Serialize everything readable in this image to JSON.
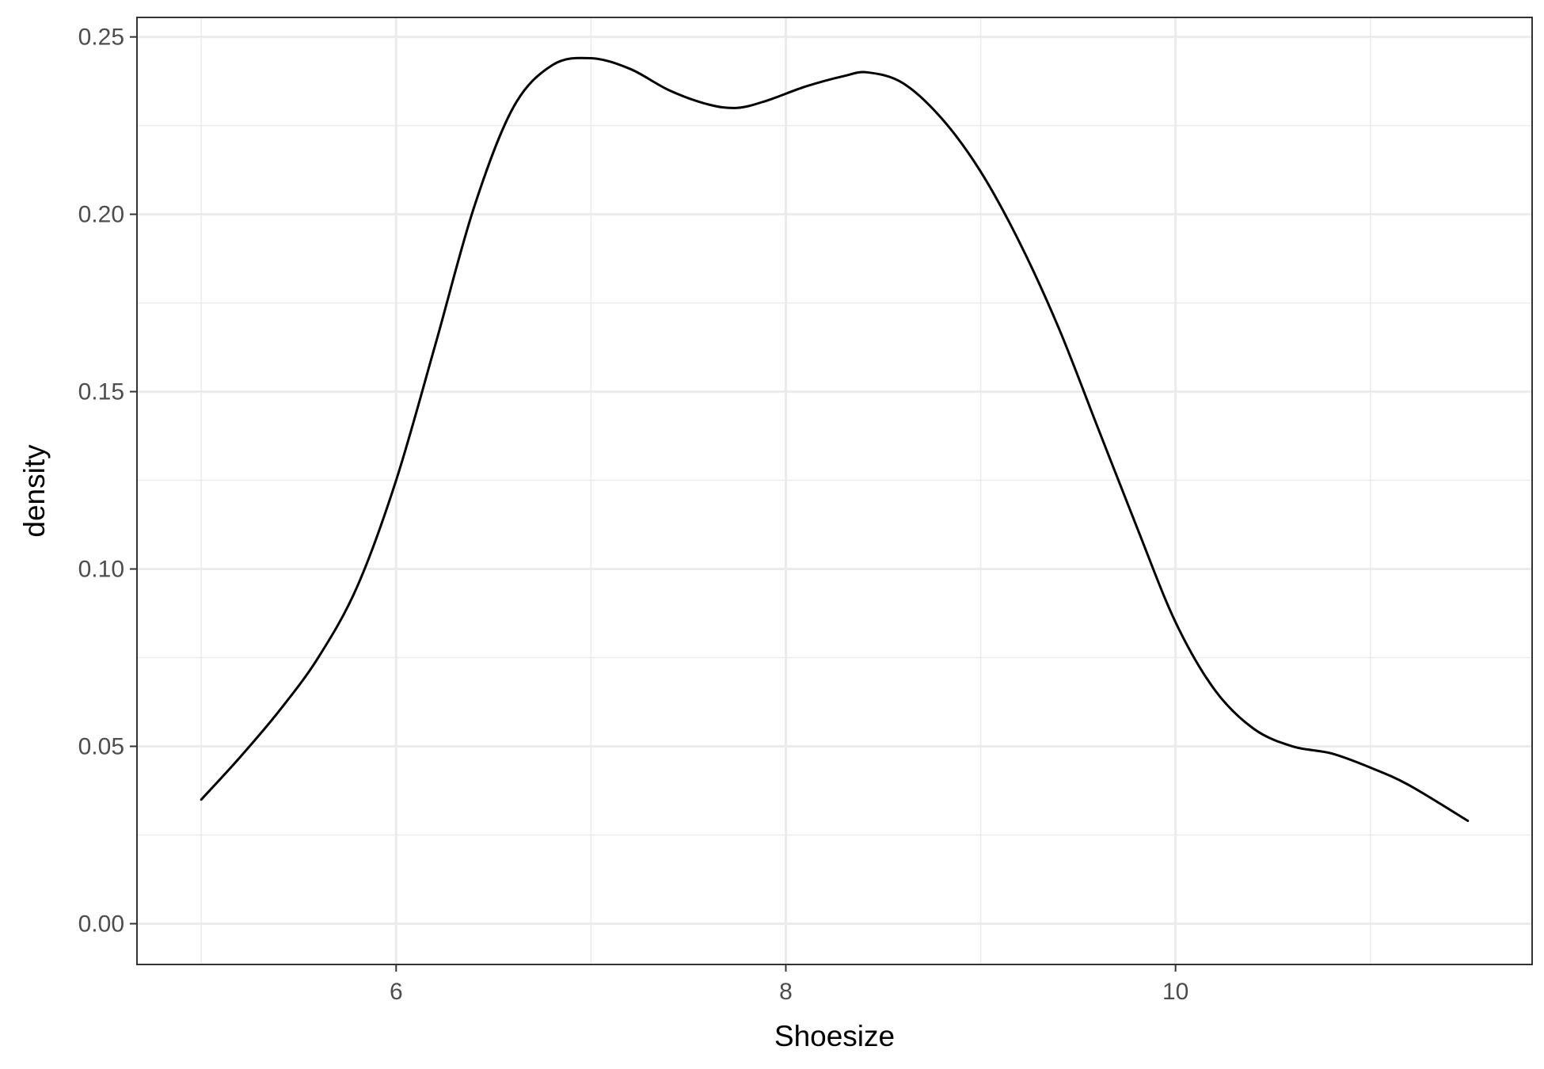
{
  "chart_data": {
    "type": "line",
    "title": "",
    "xlabel": "Shoesize",
    "ylabel": "density",
    "xlim": [
      4.67,
      11.83
    ],
    "ylim": [
      -0.0115,
      0.2555
    ],
    "x_ticks": [
      6,
      8,
      10
    ],
    "x_tick_labels": [
      "6",
      "8",
      "10"
    ],
    "x_minor_ticks": [
      5,
      7,
      9,
      11
    ],
    "y_ticks": [
      0.0,
      0.05,
      0.1,
      0.15,
      0.2,
      0.25
    ],
    "y_tick_labels": [
      "0.00",
      "0.05",
      "0.10",
      "0.15",
      "0.20",
      "0.25"
    ],
    "y_minor_ticks": [
      0.025,
      0.075,
      0.125,
      0.175,
      0.225
    ],
    "grid": true,
    "colors": {
      "line": "#000000",
      "grid": "#ebebeb",
      "panel_border": "#333333",
      "background": "#ffffff"
    },
    "series": [
      {
        "values_x": [
          5.0,
          5.2,
          5.4,
          5.6,
          5.8,
          6.0,
          6.2,
          6.4,
          6.6,
          6.8,
          7.0,
          7.2,
          7.4,
          7.6,
          7.75,
          7.9,
          8.1,
          8.3,
          8.42,
          8.6,
          8.8,
          9.0,
          9.2,
          9.4,
          9.6,
          9.8,
          10.0,
          10.2,
          10.4,
          10.6,
          10.8,
          11.0,
          11.2,
          11.5
        ],
        "values_y": [
          0.035,
          0.047,
          0.06,
          0.075,
          0.095,
          0.125,
          0.163,
          0.202,
          0.23,
          0.242,
          0.244,
          0.241,
          0.235,
          0.231,
          0.23,
          0.232,
          0.236,
          0.239,
          0.24,
          0.237,
          0.227,
          0.212,
          0.192,
          0.168,
          0.14,
          0.112,
          0.085,
          0.066,
          0.055,
          0.05,
          0.048,
          0.044,
          0.039,
          0.029
        ]
      }
    ]
  }
}
